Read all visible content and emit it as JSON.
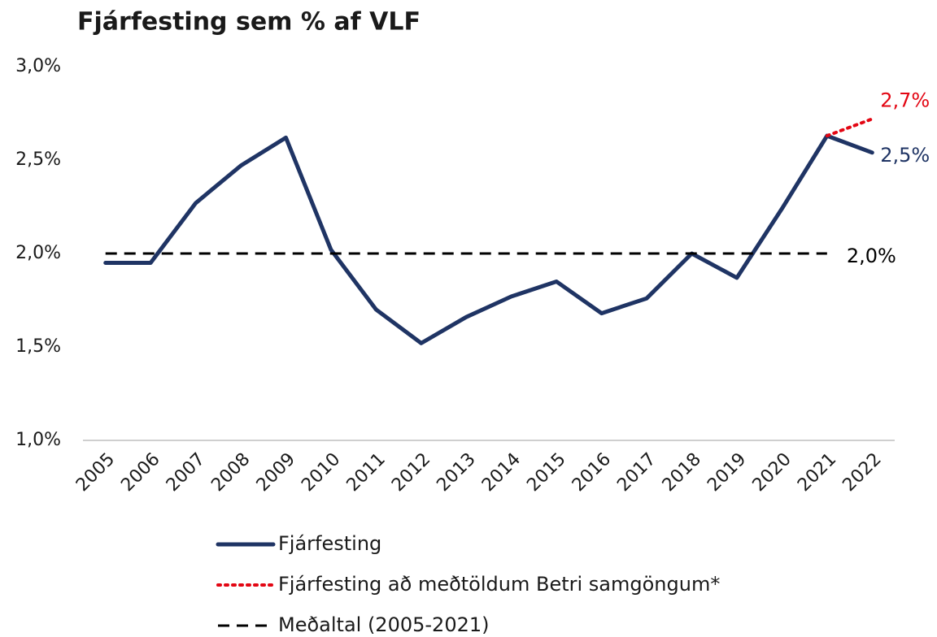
{
  "chart_data": {
    "type": "line",
    "title": "Fjárfesting sem % af VLF",
    "categories": [
      "2005",
      "2006",
      "2007",
      "2008",
      "2009",
      "2010",
      "2011",
      "2012",
      "2013",
      "2014",
      "2015",
      "2016",
      "2017",
      "2018",
      "2019",
      "2020",
      "2021",
      "2022"
    ],
    "series": [
      {
        "name": "Fjárfesting",
        "color": "#1f3464",
        "line_style": "solid",
        "values": [
          1.95,
          1.95,
          2.27,
          2.47,
          2.62,
          2.02,
          1.7,
          1.52,
          1.66,
          1.77,
          1.85,
          1.68,
          1.76,
          2.0,
          1.87,
          2.24,
          2.63,
          2.54
        ],
        "value_labels": [
          null,
          null,
          null,
          null,
          null,
          null,
          null,
          null,
          null,
          null,
          null,
          null,
          null,
          null,
          null,
          null,
          null,
          "2,5%"
        ]
      },
      {
        "name": "Fjárfesting að meðtöldum Betri samgöngum*",
        "color": "#e30613",
        "line_style": "dotted",
        "values": [
          null,
          null,
          null,
          null,
          null,
          null,
          null,
          null,
          null,
          null,
          null,
          null,
          null,
          null,
          null,
          null,
          2.63,
          2.72
        ],
        "value_labels": [
          null,
          null,
          null,
          null,
          null,
          null,
          null,
          null,
          null,
          null,
          null,
          null,
          null,
          null,
          null,
          null,
          null,
          "2,7%"
        ]
      },
      {
        "name": "Meðaltal (2005-2021)",
        "color": "#000000",
        "line_style": "dashed",
        "values": [
          2.0,
          2.0,
          2.0,
          2.0,
          2.0,
          2.0,
          2.0,
          2.0,
          2.0,
          2.0,
          2.0,
          2.0,
          2.0,
          2.0,
          2.0,
          2.0,
          2.0,
          null
        ],
        "value_labels": [
          null,
          null,
          null,
          null,
          null,
          null,
          null,
          null,
          null,
          null,
          null,
          null,
          null,
          null,
          null,
          null,
          "2,0%",
          null
        ]
      }
    ],
    "ylim": [
      1.0,
      3.0
    ],
    "yticks": [
      {
        "value": 1.0,
        "label": "1,0%"
      },
      {
        "value": 1.5,
        "label": "1,5%"
      },
      {
        "value": 2.0,
        "label": "2,0%"
      },
      {
        "value": 2.5,
        "label": "2,5%"
      },
      {
        "value": 3.0,
        "label": "3,0%"
      }
    ],
    "grid": false,
    "legend": "bottom"
  }
}
